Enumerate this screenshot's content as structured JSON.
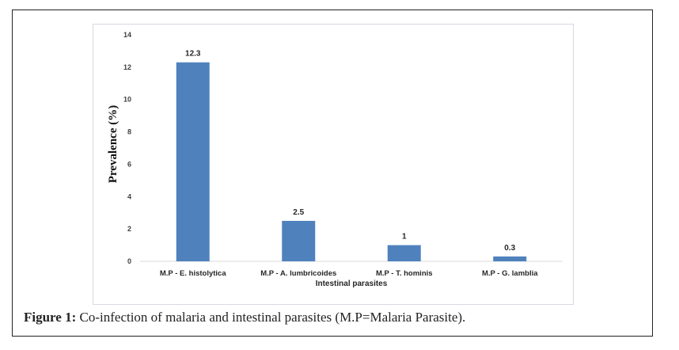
{
  "caption": {
    "label": "Figure 1:",
    "text": "Co-infection of malaria and intestinal parasites (M.P=Malaria Parasite)."
  },
  "colors": {
    "bar": "#4f81bd",
    "axis": "#d9d9d9"
  },
  "chart_data": {
    "type": "bar",
    "title": "",
    "xlabel": "Intestinal parasites",
    "ylabel": "Prevalence (%)",
    "categories": [
      "M.P - E. histolytica",
      "M.P - A. lumbricoides",
      "M.P - T. hominis",
      "M.P - G. lamblia"
    ],
    "values": [
      12.3,
      2.5,
      1,
      0.3
    ],
    "data_labels": [
      "12.3",
      "2.5",
      "1",
      "0.3"
    ],
    "ylim": [
      0,
      14
    ],
    "yticks": [
      0,
      2,
      4,
      6,
      8,
      10,
      12,
      14
    ],
    "ytick_labels": [
      "0",
      "2",
      "4",
      "6",
      "8",
      "10",
      "12",
      "14"
    ],
    "grid": false,
    "legend": "none"
  }
}
